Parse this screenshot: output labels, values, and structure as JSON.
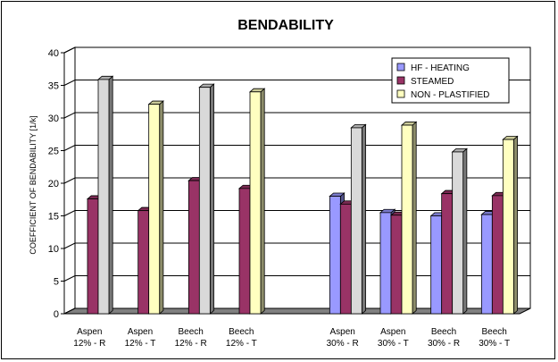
{
  "chart_data": {
    "type": "bar",
    "title": "BENDABILITY",
    "ylabel": "COEFFICIENT OF BENDABILITY    [1/k]",
    "xlabel": "",
    "ylim": [
      0,
      40
    ],
    "yticks": [
      0,
      5,
      10,
      15,
      20,
      25,
      30,
      35,
      40
    ],
    "grid": true,
    "legend_position": "top-right",
    "categories": [
      [
        "Aspen",
        "12% - R"
      ],
      [
        "Aspen",
        "12% - T"
      ],
      [
        "Beech",
        "12% - R"
      ],
      [
        "Beech",
        "12% - T"
      ],
      [
        "",
        ""
      ],
      [
        "Aspen",
        "30% - R"
      ],
      [
        "Aspen",
        "30% - T"
      ],
      [
        "Beech",
        "30% - R"
      ],
      [
        "Beech",
        "30% - T"
      ]
    ],
    "series": [
      {
        "name": "HF - HEATING",
        "color": "#9999ff",
        "values": [
          null,
          null,
          null,
          null,
          null,
          18.0,
          15.5,
          15.0,
          15.2
        ]
      },
      {
        "name": "STEAMED",
        "color": "#993366",
        "values": [
          17.6,
          15.8,
          20.4,
          19.2,
          null,
          16.8,
          15.1,
          18.4,
          18.1
        ]
      },
      {
        "name": "NON - PLASTIFIED",
        "values": [
          35.9,
          32.1,
          34.7,
          34.0,
          null,
          28.5,
          28.9,
          24.8,
          26.7
        ]
      }
    ],
    "non_plastified_fill_by_category": [
      "#d9d9d9",
      "#ffffc0",
      "#d9d9d9",
      "#ffffc0",
      "",
      "#d9d9d9",
      "#ffffc0",
      "#d9d9d9",
      "#ffffc0"
    ],
    "colors": {
      "gridline": "#000000",
      "floor": "#808080",
      "wall": "#ffffff"
    }
  }
}
